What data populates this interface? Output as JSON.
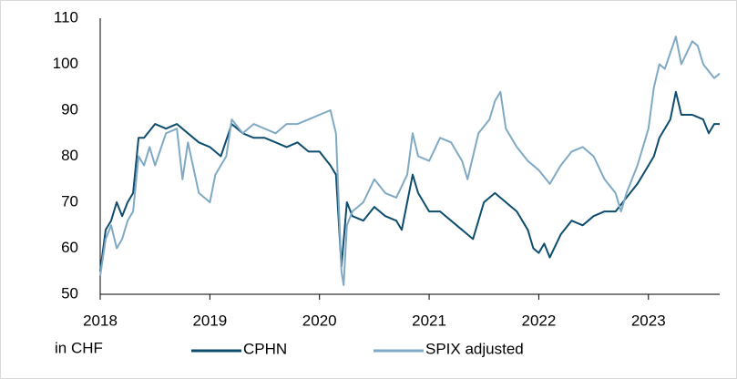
{
  "chart_data": {
    "type": "line",
    "annotation": "in CHF",
    "xlim": [
      2018,
      2023.65
    ],
    "xticks": [
      2018,
      2019,
      2020,
      2021,
      2022,
      2023
    ],
    "ylim": [
      50,
      110
    ],
    "yticks": [
      50,
      60,
      70,
      80,
      90,
      100,
      110
    ],
    "legend": "bottom",
    "series": [
      {
        "name": "CPHN",
        "color": "#0e4d6e",
        "x": [
          2018.0,
          2018.05,
          2018.1,
          2018.15,
          2018.2,
          2018.25,
          2018.3,
          2018.35,
          2018.4,
          2018.5,
          2018.6,
          2018.7,
          2018.8,
          2018.9,
          2019.0,
          2019.1,
          2019.2,
          2019.3,
          2019.4,
          2019.5,
          2019.6,
          2019.7,
          2019.8,
          2019.9,
          2020.0,
          2020.1,
          2020.15,
          2020.2,
          2020.25,
          2020.3,
          2020.4,
          2020.5,
          2020.6,
          2020.7,
          2020.75,
          2020.8,
          2020.85,
          2020.9,
          2021.0,
          2021.1,
          2021.2,
          2021.3,
          2021.4,
          2021.45,
          2021.5,
          2021.6,
          2021.7,
          2021.8,
          2021.9,
          2021.95,
          2022.0,
          2022.05,
          2022.1,
          2022.2,
          2022.3,
          2022.4,
          2022.5,
          2022.6,
          2022.7,
          2022.8,
          2022.9,
          2023.0,
          2023.05,
          2023.1,
          2023.2,
          2023.25,
          2023.3,
          2023.4,
          2023.5,
          2023.55,
          2023.6,
          2023.65
        ],
        "values": [
          55,
          64,
          66,
          70,
          67,
          70,
          72,
          84,
          84,
          87,
          86,
          87,
          85,
          83,
          82,
          80,
          87,
          85,
          84,
          84,
          83,
          82,
          83,
          81,
          81,
          78,
          76,
          56,
          70,
          67,
          66,
          69,
          67,
          66,
          64,
          70,
          76,
          72,
          68,
          68,
          66,
          64,
          62,
          66,
          70,
          72,
          70,
          68,
          64,
          60,
          59,
          61,
          58,
          63,
          66,
          65,
          67,
          68,
          68,
          71,
          74,
          78,
          80,
          84,
          88,
          94,
          89,
          89,
          88,
          85,
          87,
          87
        ]
      },
      {
        "name": "SPIX adjusted",
        "color": "#7fa9c4",
        "x": [
          2018.0,
          2018.05,
          2018.1,
          2018.15,
          2018.2,
          2018.25,
          2018.3,
          2018.35,
          2018.4,
          2018.45,
          2018.5,
          2018.6,
          2018.7,
          2018.75,
          2018.8,
          2018.9,
          2019.0,
          2019.05,
          2019.1,
          2019.15,
          2019.2,
          2019.3,
          2019.4,
          2019.5,
          2019.6,
          2019.7,
          2019.8,
          2019.9,
          2020.0,
          2020.1,
          2020.15,
          2020.2,
          2020.22,
          2020.25,
          2020.3,
          2020.4,
          2020.5,
          2020.6,
          2020.7,
          2020.8,
          2020.85,
          2020.9,
          2021.0,
          2021.1,
          2021.2,
          2021.3,
          2021.35,
          2021.4,
          2021.45,
          2021.55,
          2021.6,
          2021.65,
          2021.7,
          2021.8,
          2021.9,
          2022.0,
          2022.1,
          2022.2,
          2022.3,
          2022.4,
          2022.5,
          2022.6,
          2022.7,
          2022.75,
          2022.8,
          2022.9,
          2023.0,
          2023.05,
          2023.1,
          2023.15,
          2023.25,
          2023.3,
          2023.4,
          2023.45,
          2023.5,
          2023.6,
          2023.65
        ],
        "values": [
          54,
          62,
          65,
          60,
          62,
          66,
          68,
          80,
          78,
          82,
          78,
          85,
          86,
          75,
          83,
          72,
          70,
          76,
          78,
          80,
          88,
          85,
          87,
          86,
          85,
          87,
          87,
          88,
          89,
          90,
          85,
          55,
          52,
          65,
          68,
          70,
          75,
          72,
          71,
          76,
          85,
          80,
          79,
          84,
          83,
          79,
          75,
          80,
          85,
          88,
          92,
          94,
          86,
          82,
          79,
          77,
          74,
          78,
          81,
          82,
          80,
          75,
          72,
          68,
          72,
          78,
          86,
          95,
          100,
          99,
          106,
          100,
          105,
          104,
          100,
          97,
          98
        ]
      }
    ]
  }
}
